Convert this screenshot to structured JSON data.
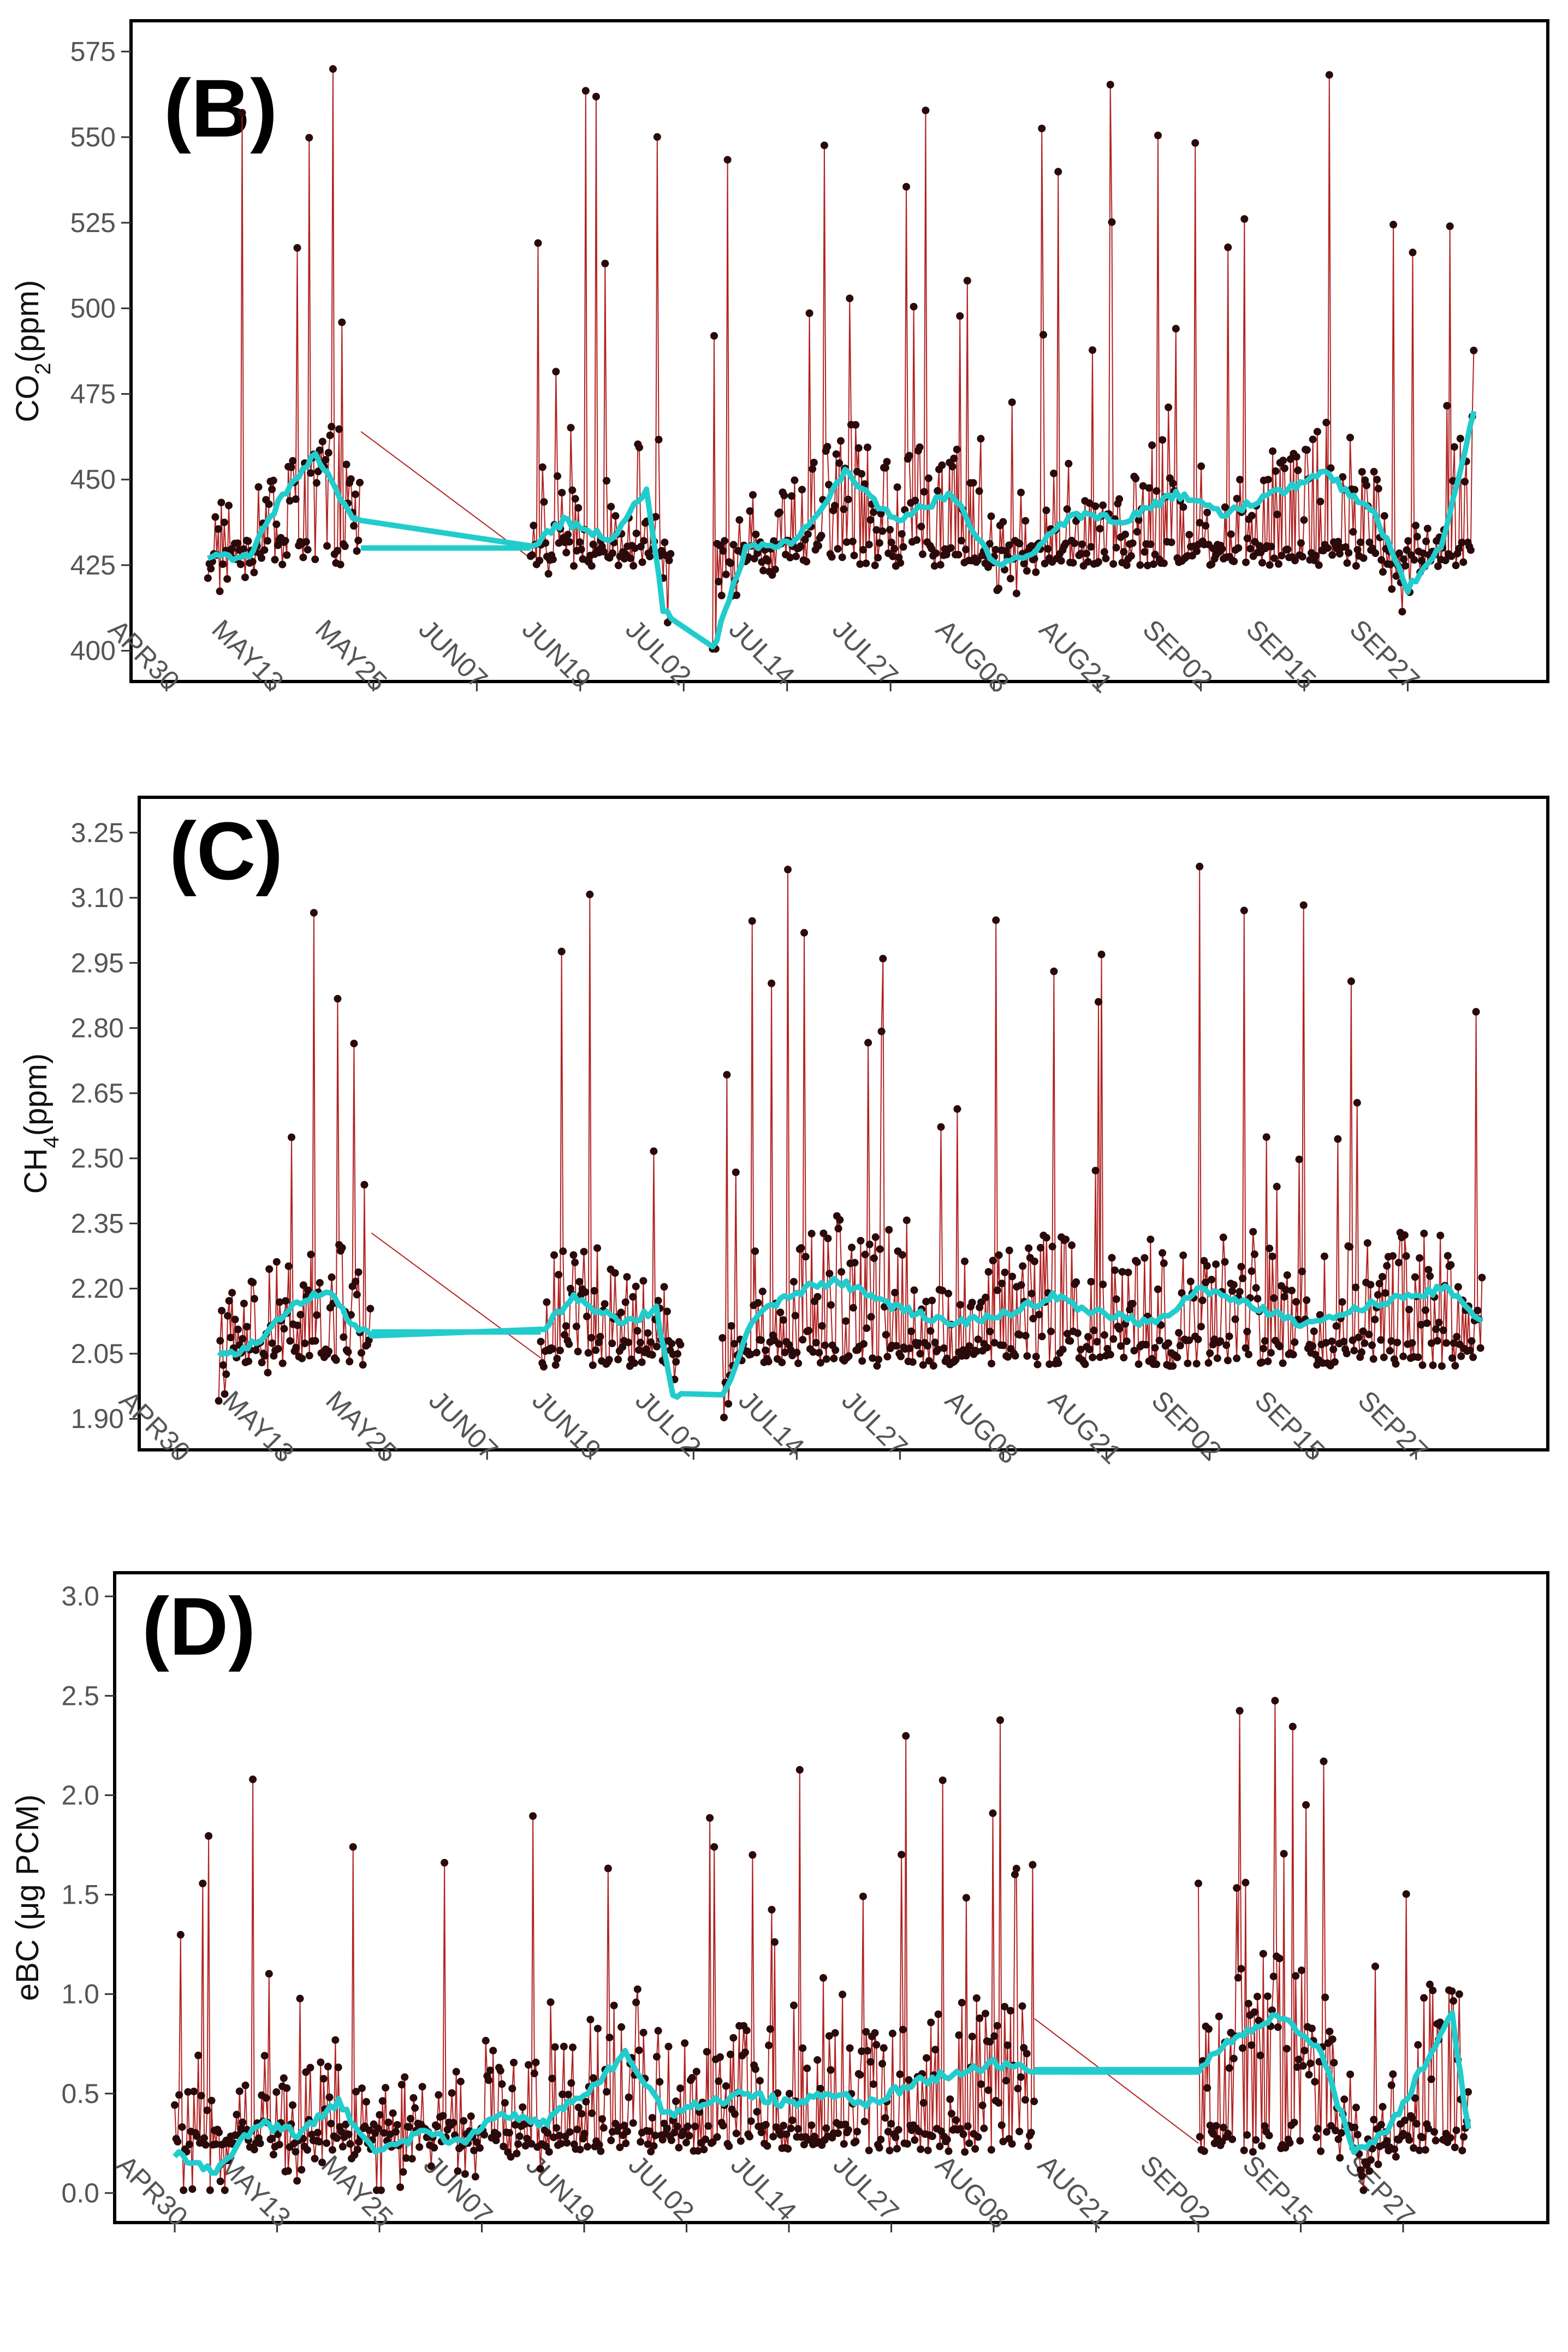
{
  "figure": {
    "months": [
      "APR30",
      "MAY13",
      "MAY25",
      "JUN07",
      "JUN19",
      "JUL02",
      "JUL14",
      "JUL27",
      "AUG08",
      "AUG21",
      "SEP02",
      "SEP15",
      "SEP27"
    ],
    "colors": {
      "trace": "#b22222",
      "point": "#2a0a0a",
      "smooth": "#22cccc",
      "frame": "#000000"
    }
  },
  "chart_data": [
    {
      "type": "line",
      "tag": "(B)",
      "ylabel_main": "CO",
      "ylabel_sub": "2",
      "ylabel_rest": "(ppm)",
      "yticks": [
        "400",
        "425",
        "450",
        "475",
        "500",
        "525",
        "550",
        "575"
      ],
      "ylim": [
        395,
        580
      ],
      "xlabels": [
        "APR30",
        "MAY13",
        "MAY25",
        "JUN07",
        "JUN19",
        "JUL02",
        "JUL14",
        "JUL27",
        "AUG08",
        "AUG21",
        "SEP02",
        "SEP15",
        "SEP27"
      ],
      "segments": [
        [
          5,
          23.5
        ],
        [
          44,
          61
        ],
        [
          66,
          158
        ]
      ],
      "gaps": [
        [
          23.5,
          44,
          430
        ]
      ],
      "baseline": 427,
      "spread": 30,
      "spike": 130,
      "series": [
        {
          "values_by_day": [
            [
              5,
              427
            ],
            [
              10,
              428
            ],
            [
              14,
              445
            ],
            [
              18,
              458
            ],
            [
              22,
              440
            ],
            [
              26,
              432
            ],
            [
              44,
              430
            ],
            [
              48,
              438
            ],
            [
              54,
              432
            ],
            [
              58,
              448
            ],
            [
              60,
              412
            ],
            [
              66,
              400
            ],
            [
              70,
              430
            ],
            [
              76,
              432
            ],
            [
              82,
              452
            ],
            [
              88,
              438
            ],
            [
              95,
              446
            ],
            [
              100,
              425
            ],
            [
              104,
              428
            ],
            [
              110,
              440
            ],
            [
              116,
              438
            ],
            [
              122,
              446
            ],
            [
              128,
              440
            ],
            [
              134,
              446
            ],
            [
              140,
              452
            ],
            [
              146,
              440
            ],
            [
              150,
              418
            ],
            [
              154,
              430
            ],
            [
              158,
              470
            ],
            [
              160,
              430
            ]
          ]
        }
      ]
    },
    {
      "type": "line",
      "tag": "(C)",
      "ylabel_main": "CH",
      "ylabel_sub": "4",
      "ylabel_rest": "(ppm)",
      "yticks": [
        "1.90",
        "2.05",
        "2.20",
        "2.35",
        "2.50",
        "2.65",
        "2.80",
        "2.95",
        "3.10",
        "3.25"
      ],
      "ylim": [
        1.86,
        3.3
      ],
      "xlabels": [
        "APR30",
        "MAY13",
        "MAY25",
        "JUN07",
        "JUN19",
        "JUL02",
        "JUL14",
        "JUL27",
        "AUG08",
        "AUG21",
        "SEP02",
        "SEP15",
        "SEP27"
      ],
      "segments": [
        [
          5,
          23.5
        ],
        [
          44,
          61
        ],
        [
          66,
          158
        ]
      ],
      "gaps": [
        [
          23.5,
          44,
          2.1
        ]
      ],
      "baseline": 2.04,
      "spread": 0.25,
      "spike": 1.0,
      "series": [
        {
          "values_by_day": [
            [
              5,
              2.04
            ],
            [
              10,
              2.08
            ],
            [
              14,
              2.16
            ],
            [
              18,
              2.2
            ],
            [
              22,
              2.1
            ],
            [
              26,
              2.1
            ],
            [
              44,
              2.1
            ],
            [
              48,
              2.18
            ],
            [
              54,
              2.12
            ],
            [
              58,
              2.15
            ],
            [
              60,
              1.96
            ],
            [
              66,
              1.95
            ],
            [
              70,
              2.14
            ],
            [
              76,
              2.2
            ],
            [
              80,
              2.22
            ],
            [
              84,
              2.18
            ],
            [
              88,
              2.15
            ],
            [
              94,
              2.12
            ],
            [
              100,
              2.14
            ],
            [
              106,
              2.18
            ],
            [
              112,
              2.14
            ],
            [
              118,
              2.12
            ],
            [
              124,
              2.2
            ],
            [
              130,
              2.16
            ],
            [
              136,
              2.12
            ],
            [
              142,
              2.15
            ],
            [
              148,
              2.18
            ],
            [
              154,
              2.2
            ],
            [
              158,
              2.12
            ]
          ]
        }
      ]
    },
    {
      "type": "line",
      "tag": "(D)",
      "ylabel_main": "eBC (μg PCM)",
      "ylabel_sub": "",
      "ylabel_rest": "",
      "yticks": [
        "0.0",
        "0.5",
        "1.0",
        "1.5",
        "2.0",
        "2.5",
        "3.0"
      ],
      "ylim": [
        -0.08,
        3.05
      ],
      "xlabels": [
        "APR30",
        "MAY13",
        "MAY25",
        "JUN07",
        "JUN19",
        "JUL02",
        "JUL14",
        "JUL27",
        "AUG08",
        "AUG21",
        "SEP02",
        "SEP15",
        "SEP27"
      ],
      "segments": [
        [
          0,
          105
        ],
        [
          125,
          158
        ]
      ],
      "gaps": [
        [
          105,
          125,
          0.62
        ]
      ],
      "baseline": 0.25,
      "spread": 0.6,
      "spike": 1.8,
      "series": [
        {
          "values_by_day": [
            [
              0,
              0.2
            ],
            [
              5,
              0.1
            ],
            [
              10,
              0.35
            ],
            [
              15,
              0.3
            ],
            [
              20,
              0.45
            ],
            [
              25,
              0.2
            ],
            [
              30,
              0.3
            ],
            [
              35,
              0.25
            ],
            [
              40,
              0.4
            ],
            [
              45,
              0.35
            ],
            [
              50,
              0.5
            ],
            [
              55,
              0.7
            ],
            [
              60,
              0.4
            ],
            [
              65,
              0.45
            ],
            [
              70,
              0.5
            ],
            [
              75,
              0.45
            ],
            [
              80,
              0.5
            ],
            [
              85,
              0.45
            ],
            [
              90,
              0.55
            ],
            [
              95,
              0.6
            ],
            [
              100,
              0.65
            ],
            [
              105,
              0.62
            ],
            [
              125,
              0.62
            ],
            [
              130,
              0.8
            ],
            [
              135,
              0.9
            ],
            [
              140,
              0.7
            ],
            [
              144,
              0.2
            ],
            [
              148,
              0.3
            ],
            [
              152,
              0.6
            ],
            [
              156,
              0.9
            ],
            [
              158,
              0.3
            ]
          ]
        }
      ]
    }
  ]
}
